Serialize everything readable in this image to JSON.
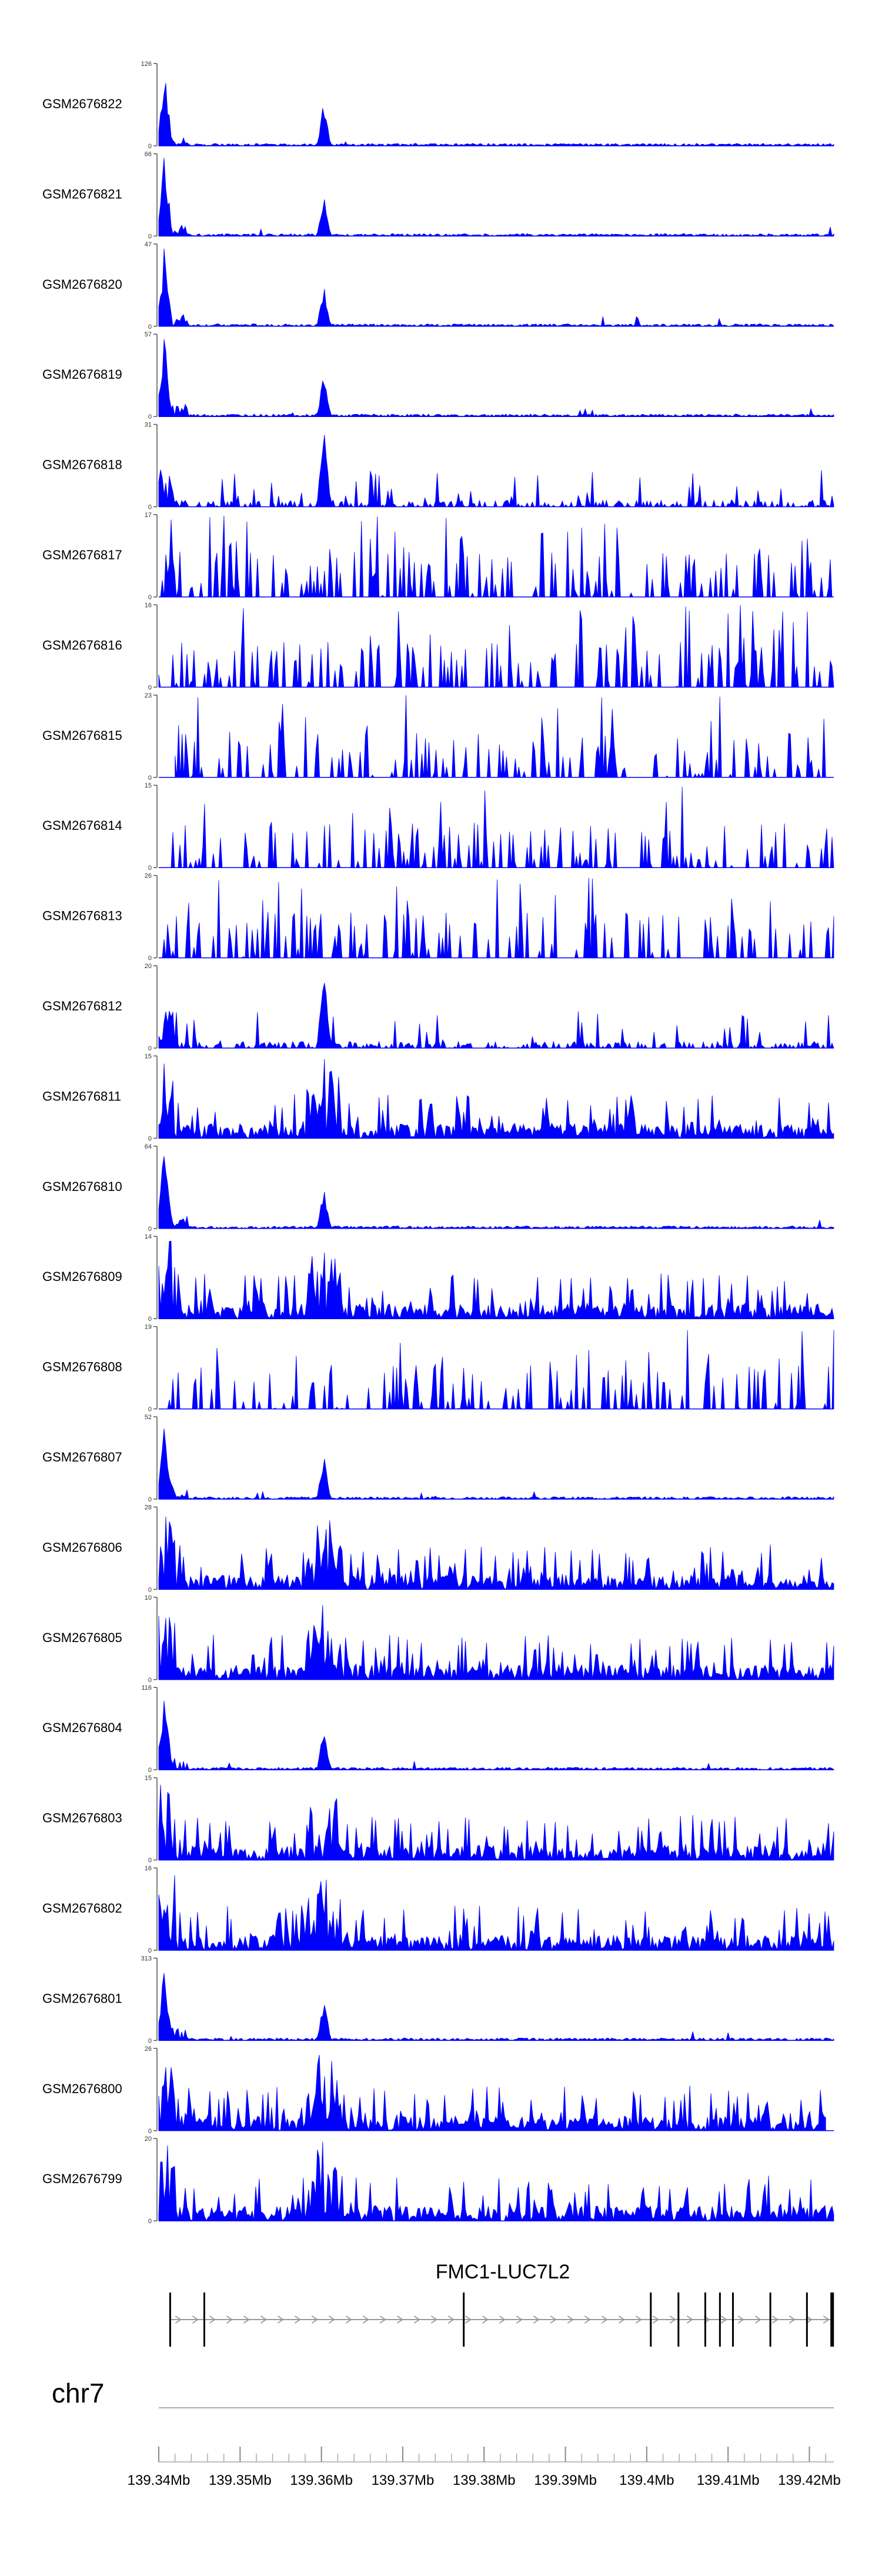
{
  "chart_data": {
    "type": "area",
    "title": "",
    "xlabel": "",
    "ylabel": "",
    "color": "#0000ff",
    "x_range_mb": [
      139.34,
      139.423
    ],
    "series": [
      {
        "name": "GSM2676822",
        "ymax": "126",
        "style": "peaky",
        "seed": 22,
        "start": 139.34,
        "end": 139.423
      },
      {
        "name": "GSM2676821",
        "ymax": "66",
        "style": "peaky",
        "seed": 21,
        "start": 139.34,
        "end": 139.423
      },
      {
        "name": "GSM2676820",
        "ymax": "47",
        "style": "peaky",
        "seed": 20,
        "start": 139.34,
        "end": 139.423
      },
      {
        "name": "GSM2676819",
        "ymax": "57",
        "style": "peaky",
        "seed": 19,
        "start": 139.34,
        "end": 139.423
      },
      {
        "name": "GSM2676818",
        "ymax": "31",
        "style": "spiky",
        "seed": 18,
        "start": 139.34,
        "end": 139.423
      },
      {
        "name": "GSM2676817",
        "ymax": "17",
        "style": "sparse",
        "seed": 17,
        "start": 139.34,
        "end": 139.423
      },
      {
        "name": "GSM2676816",
        "ymax": "16",
        "style": "sparse",
        "seed": 16,
        "start": 139.34,
        "end": 139.423
      },
      {
        "name": "GSM2676815",
        "ymax": "23",
        "style": "sparse",
        "seed": 15,
        "start": 139.342,
        "end": 139.422
      },
      {
        "name": "GSM2676814",
        "ymax": "15",
        "style": "sparse",
        "seed": 14,
        "start": 139.34,
        "end": 139.423
      },
      {
        "name": "GSM2676813",
        "ymax": "26",
        "style": "sparse",
        "seed": 13,
        "start": 139.34,
        "end": 139.423
      },
      {
        "name": "GSM2676812",
        "ymax": "20",
        "style": "spiky",
        "seed": 12,
        "start": 139.34,
        "end": 139.423
      },
      {
        "name": "GSM2676811",
        "ymax": "15",
        "style": "dense",
        "seed": 11,
        "start": 139.34,
        "end": 139.423
      },
      {
        "name": "GSM2676810",
        "ymax": "64",
        "style": "peaky",
        "seed": 10,
        "start": 139.34,
        "end": 139.423
      },
      {
        "name": "GSM2676809",
        "ymax": "14",
        "style": "dense",
        "seed": 9,
        "start": 139.34,
        "end": 139.423
      },
      {
        "name": "GSM2676808",
        "ymax": "19",
        "style": "sparse",
        "seed": 8,
        "start": 139.34,
        "end": 139.423
      },
      {
        "name": "GSM2676807",
        "ymax": "52",
        "style": "peaky",
        "seed": 7,
        "start": 139.34,
        "end": 139.423
      },
      {
        "name": "GSM2676806",
        "ymax": "28",
        "style": "dense",
        "seed": 6,
        "start": 139.34,
        "end": 139.423
      },
      {
        "name": "GSM2676805",
        "ymax": "10",
        "style": "dense",
        "seed": 5,
        "start": 139.34,
        "end": 139.423
      },
      {
        "name": "GSM2676804",
        "ymax": "116",
        "style": "peaky",
        "seed": 4,
        "start": 139.34,
        "end": 139.423
      },
      {
        "name": "GSM2676803",
        "ymax": "15",
        "style": "dense",
        "seed": 3,
        "start": 139.34,
        "end": 139.423
      },
      {
        "name": "GSM2676802",
        "ymax": "16",
        "style": "dense",
        "seed": 2,
        "start": 139.34,
        "end": 139.423
      },
      {
        "name": "GSM2676801",
        "ymax": "313",
        "style": "peaky",
        "seed": 1,
        "start": 139.34,
        "end": 139.423
      },
      {
        "name": "GSM2676800",
        "ymax": "26",
        "style": "dense",
        "seed": 100,
        "start": 139.34,
        "end": 139.422
      },
      {
        "name": "GSM2676799",
        "ymax": "20",
        "style": "dense",
        "seed": 99,
        "start": 139.34,
        "end": 139.423
      }
    ],
    "gene": {
      "name": "FMC1-LUC7L2",
      "start_mb": 139.3414,
      "end_mb": 139.4228,
      "exons_mb": [
        139.3414,
        139.3456,
        139.3775,
        139.4005,
        139.4039,
        139.4072,
        139.409,
        139.4106,
        139.4152,
        139.4197,
        139.4228
      ]
    },
    "chromosome": "chr7",
    "tick_labels": [
      "139.34Mb",
      "139.35Mb",
      "139.36Mb",
      "139.37Mb",
      "139.38Mb",
      "139.39Mb",
      "139.4Mb",
      "139.41Mb",
      "139.42Mb"
    ],
    "tick_values_mb": [
      139.34,
      139.35,
      139.36,
      139.37,
      139.38,
      139.39,
      139.4,
      139.41,
      139.42
    ],
    "minor_tick_step_mb": 0.002
  }
}
